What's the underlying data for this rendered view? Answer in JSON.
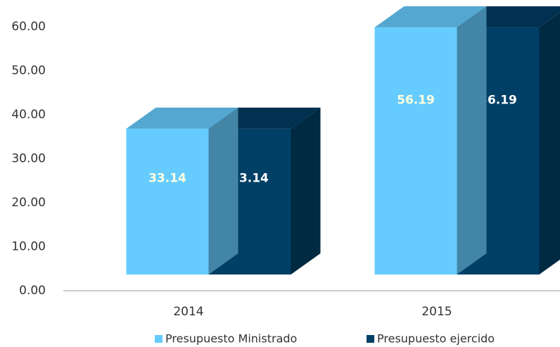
{
  "chart_data": {
    "type": "bar3d",
    "categories": [
      "2014",
      "2015"
    ],
    "series": [
      {
        "name": "Presupuesto Ministrado",
        "color": "#66ccff",
        "values": [
          33.14,
          56.19
        ]
      },
      {
        "name": "Presupuesto ejercido",
        "color": "#003f66",
        "values": [
          33.14,
          56.19
        ]
      }
    ],
    "ylim": [
      0,
      60
    ],
    "yticks": [
      {
        "value": 0,
        "label": "0.00"
      },
      {
        "value": 10,
        "label": "10.00"
      },
      {
        "value": 20,
        "label": "20.00"
      },
      {
        "value": 30,
        "label": "30.00"
      },
      {
        "value": 40,
        "label": "40.00"
      },
      {
        "value": 50,
        "label": "50.00"
      },
      {
        "value": 60,
        "label": "60.00"
      }
    ],
    "legend": "bottom"
  }
}
